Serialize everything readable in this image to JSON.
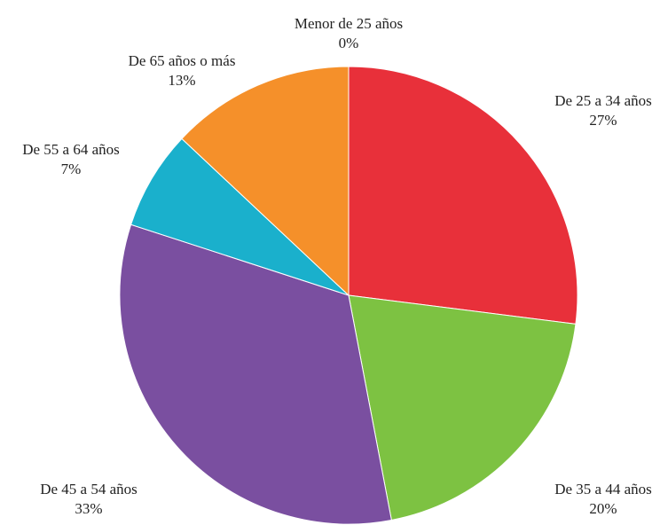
{
  "chart_data": {
    "type": "pie",
    "categories": [
      "Menor de 25 años",
      "De 25 a 34 años",
      "De 35 a 44 años",
      "De 45 a 54 años",
      "De 55 a 64 años",
      "De 65 años o más"
    ],
    "values": [
      0,
      27,
      20,
      33,
      7,
      13
    ],
    "value_labels": [
      "0%",
      "27%",
      "20%",
      "33%",
      "7%",
      "13%"
    ],
    "colors": [
      "#9e9e9e",
      "#e8303a",
      "#7dc242",
      "#7a4fa0",
      "#1ab0cc",
      "#f5902a"
    ]
  }
}
